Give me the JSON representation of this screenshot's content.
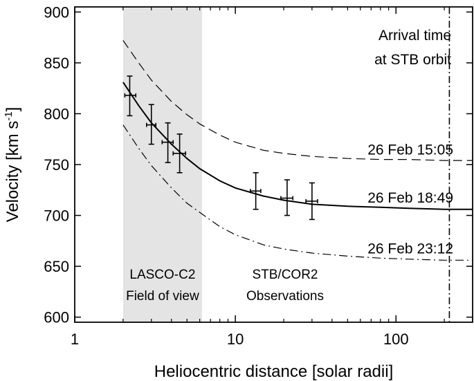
{
  "chart_data": {
    "type": "line",
    "x_scale": "log",
    "xlabel": "Heliocentric distance [solar radii]",
    "ylabel_main": "Velocity [km s",
    "ylabel_exp": "-1",
    "ylabel_tail": "]",
    "xlim": [
      1,
      300
    ],
    "ylim": [
      595,
      905
    ],
    "x_ticks": [
      1,
      10,
      100
    ],
    "x_tick_labels": [
      "1",
      "10",
      "100"
    ],
    "y_ticks": [
      600,
      650,
      700,
      750,
      800,
      850,
      900
    ],
    "y_tick_labels": [
      "600",
      "650",
      "700",
      "750",
      "800",
      "850",
      "900"
    ],
    "grid": false,
    "shaded_region": {
      "x_range": [
        2.0,
        6.2
      ],
      "label_lines": [
        "LASCO-C2",
        "Field of view"
      ],
      "color": "#e4e4e4"
    },
    "region_label_cor2": [
      "STB/COR2",
      "Observations"
    ],
    "arrival_line": {
      "x": 215,
      "label_lines": [
        "Arrival time",
        "at STB orbit"
      ]
    },
    "series": [
      {
        "name": "26 Feb 15:05",
        "style": "dashed",
        "x": [
          2.0,
          2.5,
          3,
          4,
          5,
          6,
          8,
          10,
          15,
          20,
          30,
          50,
          80,
          120,
          200,
          300
        ],
        "y": [
          872,
          850,
          833,
          812,
          799,
          790,
          779,
          772,
          764,
          761,
          758,
          756,
          755,
          755,
          754,
          754
        ]
      },
      {
        "name": "26 Feb 18:49",
        "style": "solid",
        "x": [
          2.0,
          2.5,
          3,
          4,
          5,
          6,
          8,
          10,
          15,
          20,
          30,
          50,
          80,
          120,
          200,
          300
        ],
        "y": [
          831,
          808,
          791,
          770,
          756,
          746,
          734,
          727,
          719,
          715,
          711,
          709,
          708,
          707,
          706,
          706
        ]
      },
      {
        "name": "26 Feb 23:12",
        "style": "dashdot",
        "x": [
          2.0,
          2.5,
          3,
          4,
          5,
          6,
          8,
          10,
          15,
          20,
          30,
          50,
          80,
          120,
          200,
          300
        ],
        "y": [
          789,
          766,
          749,
          727,
          712,
          703,
          689,
          681,
          671,
          667,
          663,
          660,
          658,
          657,
          656,
          656
        ]
      }
    ],
    "observations": [
      {
        "x": 2.2,
        "y": 818,
        "xerr": [
          2.05,
          2.4
        ],
        "yerr": [
          798,
          837
        ]
      },
      {
        "x": 3.0,
        "y": 789,
        "xerr": [
          2.8,
          3.2
        ],
        "yerr": [
          770,
          809
        ]
      },
      {
        "x": 3.8,
        "y": 772,
        "xerr": [
          3.5,
          4.1
        ],
        "yerr": [
          752,
          791
        ]
      },
      {
        "x": 4.5,
        "y": 761,
        "xerr": [
          4.1,
          4.9
        ],
        "yerr": [
          742,
          780
        ]
      },
      {
        "x": 13.4,
        "y": 724,
        "xerr": [
          12.4,
          14.4
        ],
        "yerr": [
          706,
          742
        ]
      },
      {
        "x": 21.0,
        "y": 717,
        "xerr": [
          19.2,
          22.8
        ],
        "yerr": [
          700,
          735
        ]
      },
      {
        "x": 30.0,
        "y": 714,
        "xerr": [
          27.5,
          32.5
        ],
        "yerr": [
          696,
          732
        ]
      }
    ]
  }
}
